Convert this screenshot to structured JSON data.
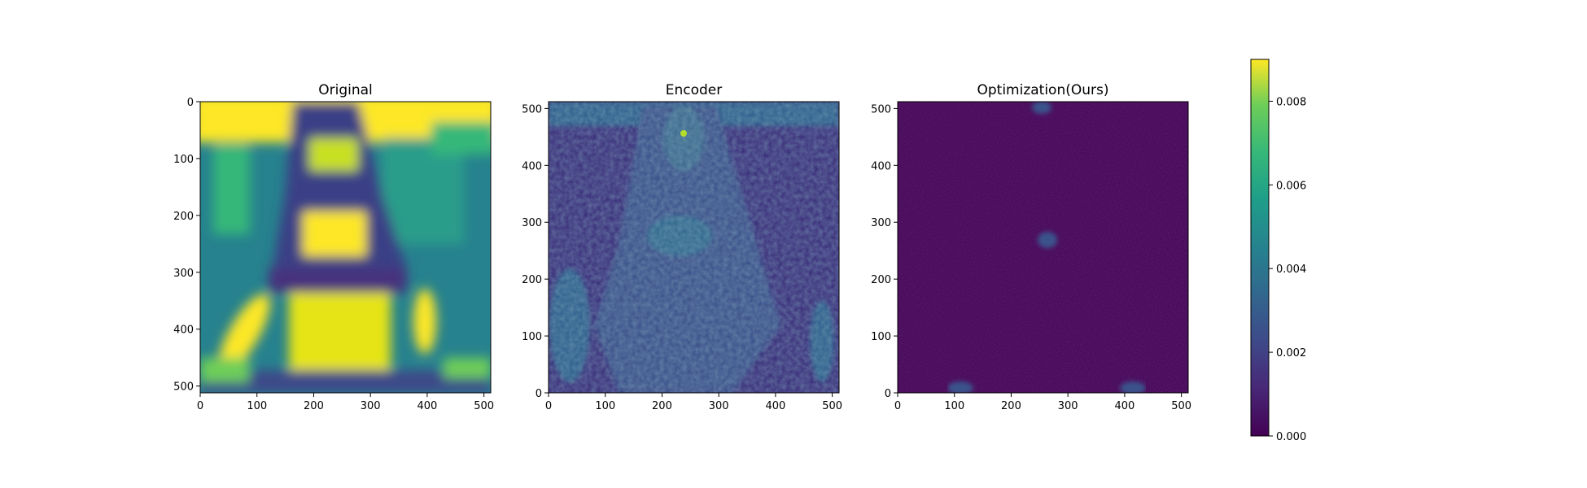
{
  "chart_data": {
    "type": "heatmap",
    "colormap": "viridis",
    "panels": [
      {
        "title": "Original",
        "x_ticks": [
          "0",
          "100",
          "200",
          "300",
          "400",
          "500"
        ],
        "y_ticks": [
          "0",
          "100",
          "200",
          "300",
          "400",
          "500"
        ],
        "y_direction": "down",
        "x_range": [
          0,
          512
        ],
        "y_range": [
          0,
          512
        ]
      },
      {
        "title": "Encoder",
        "x_ticks": [
          "0",
          "100",
          "200",
          "300",
          "400",
          "500"
        ],
        "y_ticks": [
          "0",
          "100",
          "200",
          "300",
          "400",
          "500"
        ],
        "y_direction": "up",
        "x_range": [
          0,
          512
        ],
        "y_range": [
          0,
          512
        ]
      },
      {
        "title": "Optimization(Ours)",
        "x_ticks": [
          "0",
          "100",
          "200",
          "300",
          "400",
          "500"
        ],
        "y_ticks": [
          "0",
          "100",
          "200",
          "300",
          "400",
          "500"
        ],
        "y_direction": "up",
        "x_range": [
          0,
          512
        ],
        "y_range": [
          0,
          512
        ]
      }
    ],
    "colorbar": {
      "range": [
        0,
        0.009
      ],
      "ticks": [
        "0.000",
        "0.002",
        "0.004",
        "0.006",
        "0.008"
      ],
      "tick_values": [
        0.0,
        0.002,
        0.004,
        0.006,
        0.008
      ]
    }
  }
}
